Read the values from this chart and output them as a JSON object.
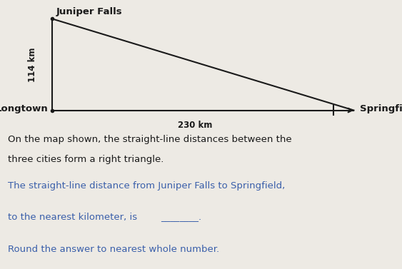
{
  "city_juniper_falls": "Juniper Falls",
  "city_longtown": "Longtown",
  "city_springfield": "Springfield",
  "vertical_label": "114 km",
  "horizontal_label": "230 km",
  "triangle_color": "#1a1a1a",
  "text_color_black": "#1a1a1a",
  "text_color_blue": "#3a5faa",
  "bg_color": "#edeae4",
  "line1": "On the map shown, the straight-line distances between the",
  "line2": "three cities form a right triangle.",
  "line3": "The straight-line distance from Juniper Falls to Springfield,",
  "line4": "to the nearest kilometer, is",
  "line4b": "________.",
  "line5": "Round the answer to nearest whole number."
}
